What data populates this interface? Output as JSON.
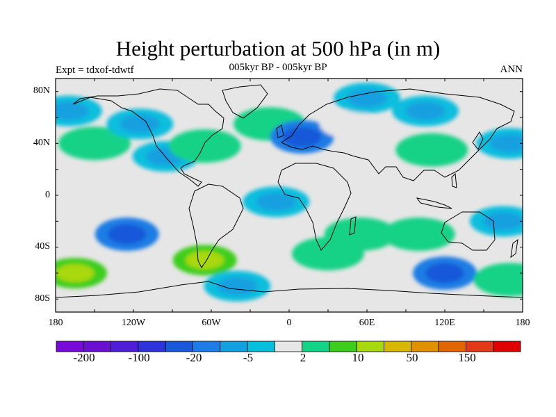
{
  "title": "Height perturbation at 500 hPa (in m)",
  "subtitle": "005kyr BP - 005kyr BP",
  "expt": "Expt = tdxof-tdwtf",
  "season": "ANN",
  "axes": {
    "lat_ticks": [
      "80N",
      "40N",
      "0",
      "40S",
      "80S"
    ],
    "lon_ticks": [
      "180",
      "120W",
      "60W",
      "0",
      "60E",
      "120E",
      "180"
    ]
  },
  "colorbar": {
    "colors": [
      "#7a0ad6",
      "#6c10cf",
      "#4f1fd8",
      "#2e33da",
      "#1859d9",
      "#1d7de4",
      "#14a0e0",
      "#08bedd",
      "#e6e6e6",
      "#14d286",
      "#3ccd1e",
      "#a8d80f",
      "#d7b700",
      "#e19000",
      "#e06600",
      "#e03a16",
      "#e00000"
    ],
    "labels": [
      "-200",
      "-100",
      "-20",
      "-5",
      "2",
      "10",
      "50",
      "150"
    ]
  },
  "chart_data": {
    "type": "heatmap",
    "projection": "cylindrical-equidistant",
    "xlim": [
      -180,
      180
    ],
    "ylim": [
      -90,
      90
    ],
    "anomalies": [
      {
        "lon": -150,
        "lat": 40,
        "level": 10
      },
      {
        "lon": -170,
        "lat": 65,
        "level": -5
      },
      {
        "lon": -115,
        "lat": 55,
        "level": -5
      },
      {
        "lon": -78,
        "lat": 75,
        "level": 2
      },
      {
        "lon": -95,
        "lat": 30,
        "level": -5
      },
      {
        "lon": -65,
        "lat": 38,
        "level": 10
      },
      {
        "lon": -15,
        "lat": 55,
        "level": 10
      },
      {
        "lon": 10,
        "lat": 45,
        "level": -20
      },
      {
        "lon": 45,
        "lat": 55,
        "level": 2
      },
      {
        "lon": 60,
        "lat": 75,
        "level": -5
      },
      {
        "lon": 105,
        "lat": 65,
        "level": -5
      },
      {
        "lon": 110,
        "lat": 35,
        "level": 10
      },
      {
        "lon": 170,
        "lat": 40,
        "level": -5
      },
      {
        "lon": -125,
        "lat": -30,
        "level": -20
      },
      {
        "lon": -165,
        "lat": -60,
        "level": 50
      },
      {
        "lon": -65,
        "lat": -50,
        "level": 50
      },
      {
        "lon": -40,
        "lat": -70,
        "level": -5
      },
      {
        "lon": 30,
        "lat": -45,
        "level": 10
      },
      {
        "lon": 55,
        "lat": -30,
        "level": 10
      },
      {
        "lon": 100,
        "lat": -30,
        "level": 10
      },
      {
        "lon": 120,
        "lat": -60,
        "level": -20
      },
      {
        "lon": 170,
        "lat": -65,
        "level": 10
      },
      {
        "lon": 165,
        "lat": -20,
        "level": -5
      },
      {
        "lon": -10,
        "lat": -5,
        "level": -5
      }
    ]
  }
}
